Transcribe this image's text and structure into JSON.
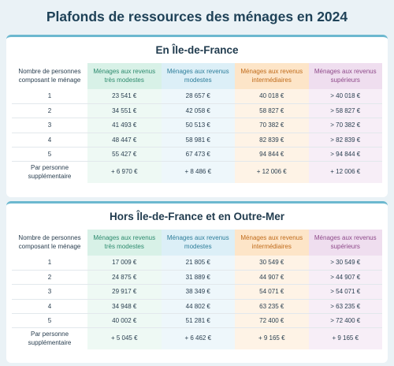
{
  "title": "Plafonds de ressources des ménages en 2024",
  "header_labels": {
    "persons": "Nombre de personnes composant le ménage",
    "tres_modestes": "Ménages aux revenus très modestes",
    "modestes": "Ménages aux revenus modestes",
    "intermediaires": "Ménages aux revenus intermédiaires",
    "superieurs": "Ménages aux revenus supérieurs"
  },
  "colors": {
    "tres_modestes": "#2c8a6d",
    "modestes": "#2d7d9a",
    "intermediaires": "#c06b1a",
    "superieurs": "#8e4a8a"
  },
  "sections": [
    {
      "title": "En Île-de-France",
      "rows": [
        {
          "persons": "1",
          "tres_modestes": "23 541 €",
          "modestes": "28 657 €",
          "intermediaires": "40 018 €",
          "superieurs": "> 40 018 €"
        },
        {
          "persons": "2",
          "tres_modestes": "34 551 €",
          "modestes": "42 058 €",
          "intermediaires": "58 827 €",
          "superieurs": "> 58 827 €"
        },
        {
          "persons": "3",
          "tres_modestes": "41 493 €",
          "modestes": "50 513 €",
          "intermediaires": "70 382 €",
          "superieurs": "> 70 382 €"
        },
        {
          "persons": "4",
          "tres_modestes": "48 447 €",
          "modestes": "58 981 €",
          "intermediaires": "82 839 €",
          "superieurs": "> 82 839 €"
        },
        {
          "persons": "5",
          "tres_modestes": "55 427 €",
          "modestes": "67 473 €",
          "intermediaires": "94 844 €",
          "superieurs": "> 94 844 €"
        },
        {
          "persons": "Par personne supplémentaire",
          "tres_modestes": "+ 6 970 €",
          "modestes": "+ 8 486 €",
          "intermediaires": "+ 12 006 €",
          "superieurs": "+ 12 006 €"
        }
      ]
    },
    {
      "title": "Hors Île-de-France et en Outre-Mer",
      "rows": [
        {
          "persons": "1",
          "tres_modestes": "17 009 €",
          "modestes": "21 805 €",
          "intermediaires": "30 549 €",
          "superieurs": "> 30 549 €"
        },
        {
          "persons": "2",
          "tres_modestes": "24 875 €",
          "modestes": "31 889 €",
          "intermediaires": "44 907 €",
          "superieurs": "> 44 907 €"
        },
        {
          "persons": "3",
          "tres_modestes": "29 917 €",
          "modestes": "38 349 €",
          "intermediaires": "54 071 €",
          "superieurs": "> 54 071 €"
        },
        {
          "persons": "4",
          "tres_modestes": "34 948 €",
          "modestes": "44 802 €",
          "intermediaires": "63 235 €",
          "superieurs": "> 63 235 €"
        },
        {
          "persons": "5",
          "tres_modestes": "40 002 €",
          "modestes": "51 281 €",
          "intermediaires": "72 400 €",
          "superieurs": "> 72 400 €"
        },
        {
          "persons": "Par personne supplémentaire",
          "tres_modestes": "+ 5 045 €",
          "modestes": "+ 6 462 €",
          "intermediaires": "+ 9 165 €",
          "superieurs": "+ 9 165 €"
        }
      ]
    }
  ]
}
